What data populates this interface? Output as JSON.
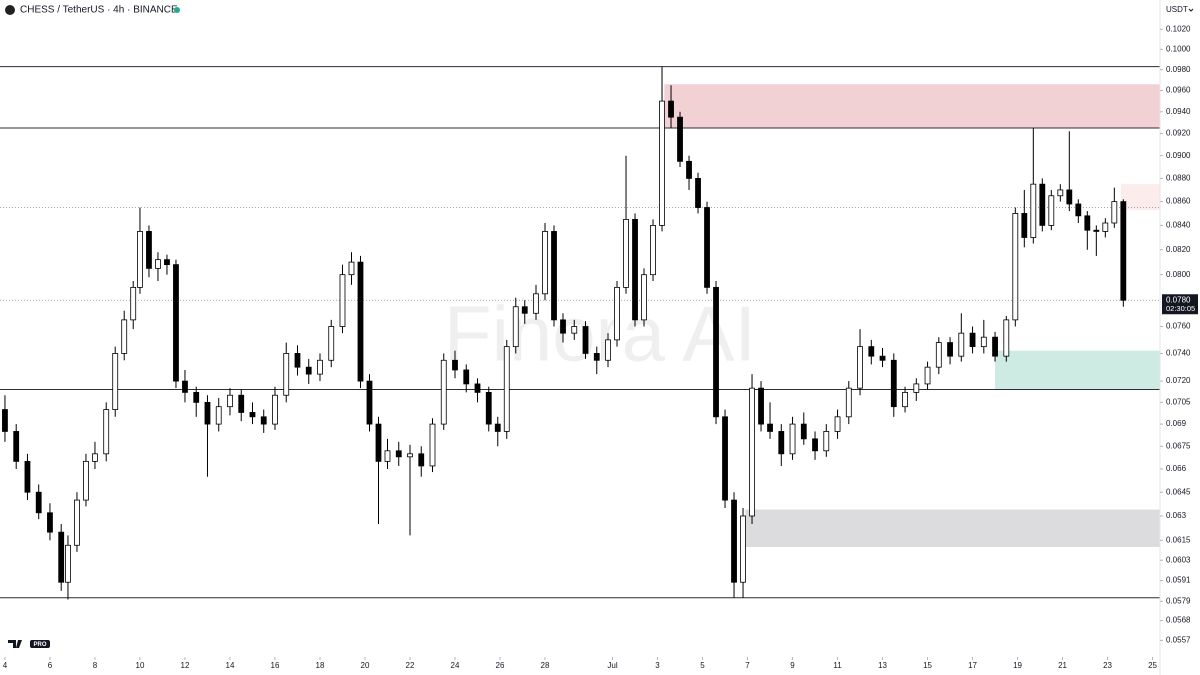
{
  "header": {
    "symbol": "CHESS / TetherUS · 4h · BINANCE",
    "currency": "USDT"
  },
  "watermark": "Finora AI",
  "badge": "PRO",
  "chart_data": {
    "type": "candlestick",
    "log": true,
    "up_color": "#ffffff",
    "down_color": "#000000",
    "xlim": [
      3.78,
      55.33
    ],
    "xticks": [
      4,
      6,
      8,
      10,
      12,
      14,
      16,
      18,
      20,
      22,
      24,
      26,
      28,
      {
        "value": 31,
        "label": "Jul"
      },
      {
        "value": 33,
        "label": "3"
      },
      {
        "value": 35,
        "label": "5"
      },
      {
        "value": 37,
        "label": "7"
      },
      {
        "value": 39,
        "label": "9"
      },
      {
        "value": 41,
        "label": "11"
      },
      {
        "value": 43,
        "label": "13"
      },
      {
        "value": 45,
        "label": "15"
      },
      {
        "value": 47,
        "label": "17"
      },
      {
        "value": 49,
        "label": "19"
      },
      {
        "value": 51,
        "label": "21"
      },
      {
        "value": 53,
        "label": "23"
      },
      {
        "value": 55,
        "label": "25"
      }
    ],
    "ylim": [
      0.0549,
      0.105
    ],
    "yticks": [
      {
        "value": 0.102,
        "label": "0.1020"
      },
      {
        "value": 0.1,
        "label": "0.1000"
      },
      {
        "value": 0.098,
        "label": "0.0980"
      },
      {
        "value": 0.096,
        "label": "0.0960"
      },
      {
        "value": 0.094,
        "label": "0.0940"
      },
      {
        "value": 0.092,
        "label": "0.0920"
      },
      {
        "value": 0.09,
        "label": "0.0900"
      },
      {
        "value": 0.088,
        "label": "0.0880"
      },
      {
        "value": 0.086,
        "label": "0.0860"
      },
      {
        "value": 0.084,
        "label": "0.0840"
      },
      {
        "value": 0.082,
        "label": "0.0820"
      },
      {
        "value": 0.08,
        "label": "0.0800"
      },
      {
        "value": 0.076,
        "label": "0.0760"
      },
      {
        "value": 0.074,
        "label": "0.0740"
      },
      {
        "value": 0.072,
        "label": "0.0720"
      },
      0.0705,
      0.069,
      0.0675,
      0.066,
      0.0645,
      0.063,
      0.0615,
      0.0603,
      0.0591,
      0.0579,
      0.0568,
      0.0557
    ],
    "x": [
      4.0,
      4.5,
      5.0,
      5.5,
      6.0,
      6.5,
      6.8,
      7.2,
      7.6,
      8.0,
      8.5,
      8.9,
      9.3,
      9.7,
      10.0,
      10.4,
      10.8,
      11.2,
      11.6,
      12.0,
      12.5,
      13.0,
      13.5,
      14.0,
      14.5,
      15.0,
      15.5,
      16.0,
      16.5,
      17.0,
      17.5,
      18.0,
      18.5,
      19.0,
      19.4,
      19.8,
      20.2,
      20.6,
      21.0,
      21.5,
      22.0,
      22.5,
      23.0,
      23.5,
      24.0,
      24.5,
      25.0,
      25.5,
      25.9,
      26.3,
      26.7,
      27.1,
      27.6,
      28.0,
      28.4,
      28.8,
      29.3,
      29.8,
      30.3,
      30.8,
      31.2,
      31.6,
      32.0,
      32.4,
      32.8,
      33.2,
      33.6,
      34.0,
      34.4,
      34.8,
      35.2,
      35.6,
      36.0,
      36.4,
      36.8,
      37.2,
      37.6,
      38.0,
      38.5,
      39.0,
      39.5,
      40.0,
      40.5,
      41.0,
      41.5,
      42.0,
      42.5,
      43.0,
      43.5,
      44.0,
      44.5,
      45.0,
      45.5,
      46.0,
      46.5,
      47.0,
      47.5,
      48.0,
      48.5,
      48.9,
      49.3,
      49.7,
      50.1,
      50.5,
      50.9,
      51.3,
      51.7,
      52.1,
      52.5,
      52.9,
      53.3,
      53.7
    ],
    "open": [
      0.07,
      0.0685,
      0.0665,
      0.0645,
      0.0632,
      0.062,
      0.059,
      0.0612,
      0.064,
      0.0665,
      0.067,
      0.07,
      0.074,
      0.0765,
      0.079,
      0.0835,
      0.0805,
      0.0812,
      0.0808,
      0.072,
      0.0712,
      0.0705,
      0.069,
      0.0702,
      0.071,
      0.0698,
      0.0695,
      0.069,
      0.071,
      0.074,
      0.073,
      0.0725,
      0.0735,
      0.076,
      0.08,
      0.081,
      0.072,
      0.069,
      0.0665,
      0.0672,
      0.0668,
      0.067,
      0.0662,
      0.069,
      0.0735,
      0.0728,
      0.0718,
      0.0712,
      0.069,
      0.0685,
      0.0745,
      0.0775,
      0.077,
      0.0785,
      0.0835,
      0.0765,
      0.0755,
      0.076,
      0.074,
      0.0735,
      0.075,
      0.079,
      0.0845,
      0.0765,
      0.08,
      0.084,
      0.095,
      0.0935,
      0.0895,
      0.088,
      0.0855,
      0.079,
      0.0695,
      0.064,
      0.059,
      0.063,
      0.0715,
      0.069,
      0.0685,
      0.067,
      0.069,
      0.068,
      0.0672,
      0.0685,
      0.0695,
      0.0715,
      0.0745,
      0.0738,
      0.0735,
      0.0702,
      0.0712,
      0.0718,
      0.073,
      0.0748,
      0.0738,
      0.0755,
      0.0745,
      0.0752,
      0.0738,
      0.0765,
      0.085,
      0.083,
      0.0875,
      0.084,
      0.0865,
      0.087,
      0.0858,
      0.0848,
      0.0836,
      0.0835,
      0.0842,
      0.086
    ],
    "high": [
      0.071,
      0.069,
      0.067,
      0.065,
      0.0638,
      0.0625,
      0.0618,
      0.0645,
      0.067,
      0.0678,
      0.0705,
      0.0745,
      0.0772,
      0.0795,
      0.0855,
      0.084,
      0.0818,
      0.0816,
      0.0812,
      0.0728,
      0.0716,
      0.071,
      0.0708,
      0.0715,
      0.0714,
      0.0705,
      0.07,
      0.0716,
      0.0748,
      0.0746,
      0.0736,
      0.074,
      0.0765,
      0.0808,
      0.0818,
      0.0815,
      0.0725,
      0.0695,
      0.068,
      0.0678,
      0.0676,
      0.0675,
      0.0694,
      0.074,
      0.0742,
      0.0732,
      0.0722,
      0.0716,
      0.0695,
      0.075,
      0.0782,
      0.078,
      0.0792,
      0.0842,
      0.084,
      0.077,
      0.0765,
      0.0764,
      0.0745,
      0.0755,
      0.0795,
      0.09,
      0.085,
      0.0805,
      0.0845,
      0.0983,
      0.0965,
      0.094,
      0.09,
      0.0885,
      0.086,
      0.0795,
      0.07,
      0.0645,
      0.0635,
      0.0725,
      0.072,
      0.0705,
      0.069,
      0.0695,
      0.0698,
      0.0685,
      0.069,
      0.07,
      0.072,
      0.0758,
      0.075,
      0.0744,
      0.074,
      0.0716,
      0.0722,
      0.0734,
      0.0752,
      0.0752,
      0.077,
      0.076,
      0.0765,
      0.0756,
      0.0768,
      0.0855,
      0.087,
      0.0925,
      0.088,
      0.087,
      0.0875,
      0.0922,
      0.0862,
      0.0852,
      0.084,
      0.0846,
      0.0872,
      0.0862
    ],
    "low": [
      0.0678,
      0.066,
      0.064,
      0.0628,
      0.0615,
      0.0585,
      0.058,
      0.0608,
      0.0636,
      0.066,
      0.0665,
      0.0695,
      0.0735,
      0.0758,
      0.0785,
      0.0798,
      0.0795,
      0.08,
      0.0715,
      0.0705,
      0.0695,
      0.0655,
      0.0685,
      0.0696,
      0.0692,
      0.069,
      0.0684,
      0.0686,
      0.0705,
      0.0724,
      0.0718,
      0.072,
      0.073,
      0.0755,
      0.0792,
      0.0715,
      0.0685,
      0.0625,
      0.066,
      0.0662,
      0.0618,
      0.0655,
      0.0658,
      0.0686,
      0.0722,
      0.0712,
      0.0705,
      0.0685,
      0.0675,
      0.068,
      0.074,
      0.0762,
      0.0765,
      0.078,
      0.076,
      0.0748,
      0.075,
      0.0736,
      0.0725,
      0.073,
      0.0745,
      0.0785,
      0.076,
      0.076,
      0.0795,
      0.0835,
      0.0925,
      0.089,
      0.087,
      0.085,
      0.0785,
      0.069,
      0.0635,
      0.0581,
      0.0581,
      0.0625,
      0.0685,
      0.068,
      0.0662,
      0.0666,
      0.0676,
      0.0666,
      0.0668,
      0.068,
      0.069,
      0.071,
      0.0732,
      0.073,
      0.0695,
      0.0698,
      0.0706,
      0.0714,
      0.0725,
      0.0732,
      0.0734,
      0.074,
      0.074,
      0.0734,
      0.0734,
      0.076,
      0.0822,
      0.0825,
      0.0835,
      0.0836,
      0.086,
      0.0852,
      0.0842,
      0.082,
      0.0815,
      0.083,
      0.0838,
      0.0775
    ],
    "close": [
      0.0685,
      0.0665,
      0.0645,
      0.0632,
      0.062,
      0.059,
      0.0612,
      0.064,
      0.0665,
      0.067,
      0.07,
      0.074,
      0.0765,
      0.079,
      0.0835,
      0.0805,
      0.0812,
      0.0808,
      0.072,
      0.0712,
      0.0705,
      0.069,
      0.0702,
      0.071,
      0.0698,
      0.0695,
      0.069,
      0.071,
      0.074,
      0.073,
      0.0725,
      0.0735,
      0.076,
      0.08,
      0.081,
      0.072,
      0.069,
      0.0665,
      0.0672,
      0.0668,
      0.067,
      0.0662,
      0.069,
      0.0735,
      0.0728,
      0.0718,
      0.0712,
      0.069,
      0.0685,
      0.0745,
      0.0775,
      0.077,
      0.0785,
      0.0835,
      0.0765,
      0.0755,
      0.076,
      0.074,
      0.0735,
      0.075,
      0.079,
      0.0845,
      0.0765,
      0.08,
      0.084,
      0.095,
      0.0935,
      0.0895,
      0.088,
      0.0855,
      0.079,
      0.0695,
      0.064,
      0.059,
      0.063,
      0.0715,
      0.069,
      0.0685,
      0.067,
      0.069,
      0.068,
      0.0672,
      0.0685,
      0.0695,
      0.0715,
      0.0745,
      0.0738,
      0.0735,
      0.0702,
      0.0712,
      0.0718,
      0.073,
      0.0748,
      0.0738,
      0.0755,
      0.0745,
      0.0752,
      0.0738,
      0.0765,
      0.085,
      0.083,
      0.0875,
      0.084,
      0.0865,
      0.087,
      0.0858,
      0.0848,
      0.0836,
      0.0835,
      0.0842,
      0.086,
      0.078
    ],
    "levels": [
      0.0983,
      0.0925,
      0.0714,
      0.0581
    ],
    "dotted_levels": [
      0.0855,
      0.078
    ],
    "zones": [
      {
        "from_x": 33.3,
        "top": 0.0966,
        "bottom": 0.0925,
        "color": "#f2d1d4"
      },
      {
        "from_x": 53.6,
        "top": 0.0875,
        "bottom": 0.0853,
        "color": "#fcecec"
      },
      {
        "from_x": 48.0,
        "top": 0.0742,
        "bottom": 0.0714,
        "color": "#cdeae3"
      },
      {
        "from_x": 36.9,
        "top": 0.0634,
        "bottom": 0.0611,
        "color": "#dcdcde"
      }
    ],
    "price_tag": {
      "value": 0.078,
      "label": "0.0780",
      "countdown": "02:30:05"
    }
  }
}
